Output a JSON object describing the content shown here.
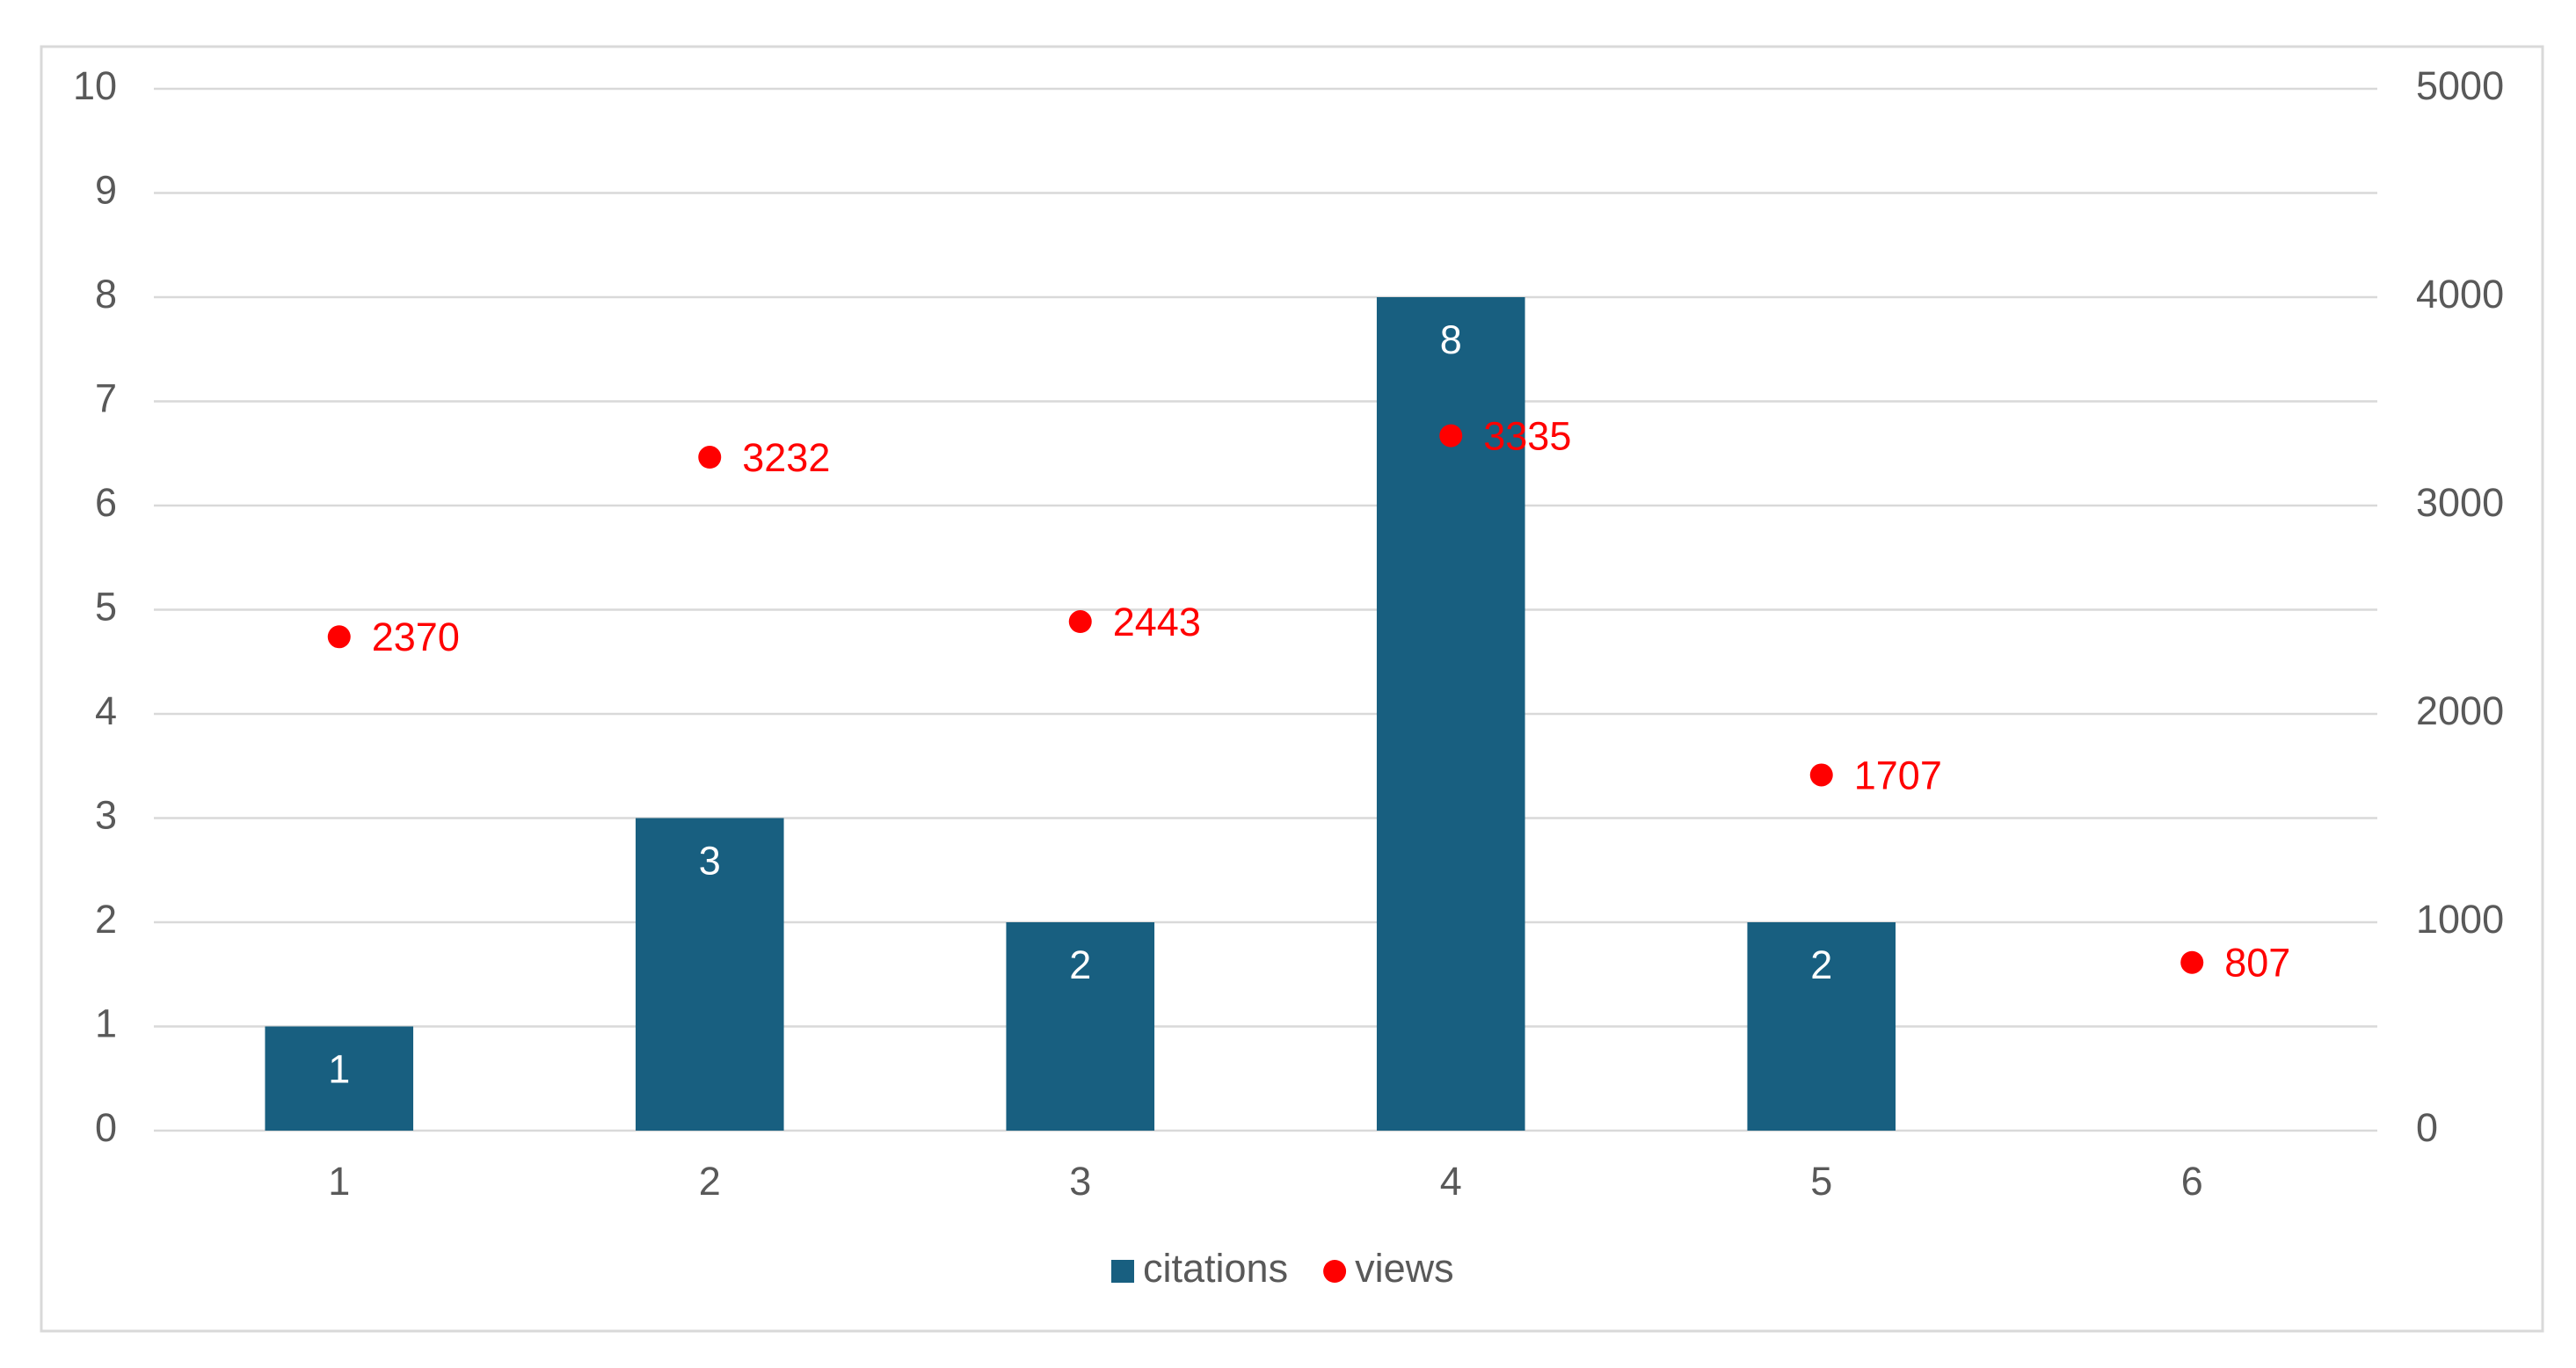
{
  "chart_data": {
    "type": "bar",
    "categories": [
      "1",
      "2",
      "3",
      "4",
      "5",
      "6"
    ],
    "series": [
      {
        "name": "citations",
        "type": "bar",
        "color": "#185f80",
        "values": [
          1,
          3,
          2,
          8,
          2,
          null
        ]
      },
      {
        "name": "views",
        "type": "scatter",
        "axis": "y2",
        "color": "#ff0000",
        "values": [
          2370,
          3232,
          2443,
          3335,
          1707,
          807
        ]
      }
    ],
    "ylim": [
      0,
      10
    ],
    "yticks": [
      0,
      1,
      2,
      3,
      4,
      5,
      6,
      7,
      8,
      9,
      10
    ],
    "y2lim": [
      0,
      5000
    ],
    "y2ticks": [
      0,
      1000,
      2000,
      3000,
      4000,
      5000
    ],
    "grid": true,
    "legend": "bottom"
  }
}
